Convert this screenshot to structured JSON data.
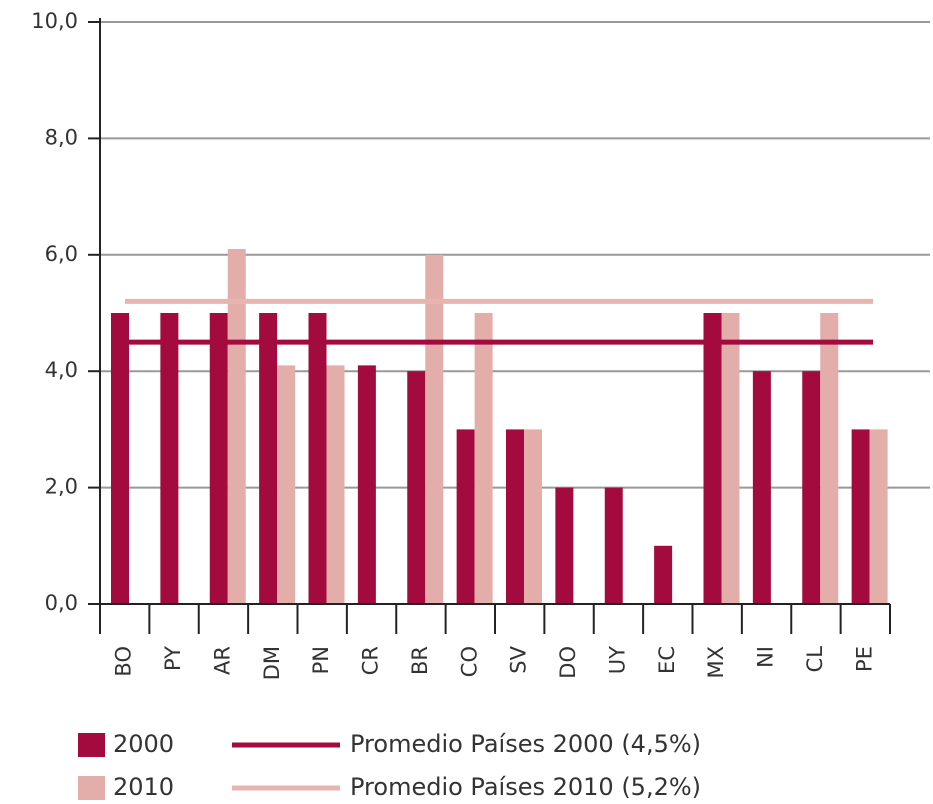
{
  "chart_data": {
    "type": "bar",
    "categories": [
      "BO",
      "PY",
      "AR",
      "DM",
      "PN",
      "CR",
      "BR",
      "CO",
      "SV",
      "DO",
      "UY",
      "EC",
      "MX",
      "NI",
      "CL",
      "PE"
    ],
    "series": [
      {
        "name": "2000",
        "color": "#a30a3d",
        "values": [
          5,
          5,
          5,
          5,
          5,
          4.1,
          4,
          3,
          3,
          2,
          2,
          1,
          5,
          4,
          4,
          3
        ]
      },
      {
        "name": "2010",
        "color": "#e3aeaa",
        "values": [
          null,
          null,
          6.1,
          4.1,
          4.1,
          null,
          6,
          5,
          3,
          null,
          null,
          null,
          5,
          null,
          5,
          3
        ]
      }
    ],
    "reference_lines": [
      {
        "label": "Promedio Países 2000 (4,5%)",
        "value": 4.5,
        "color": "#a30a3d"
      },
      {
        "label": "Promedio Países 2010 (5,2%)",
        "value": 5.2,
        "color": "#e8b4b0"
      }
    ],
    "ylim": [
      0,
      10
    ],
    "yticks": [
      {
        "value": 0,
        "label": "0,0"
      },
      {
        "value": 2,
        "label": "2,0"
      },
      {
        "value": 4,
        "label": "4,0"
      },
      {
        "value": 6,
        "label": "6,0"
      },
      {
        "value": 8,
        "label": "8,0"
      },
      {
        "value": 10,
        "label": "10,0"
      }
    ],
    "grid": true
  }
}
